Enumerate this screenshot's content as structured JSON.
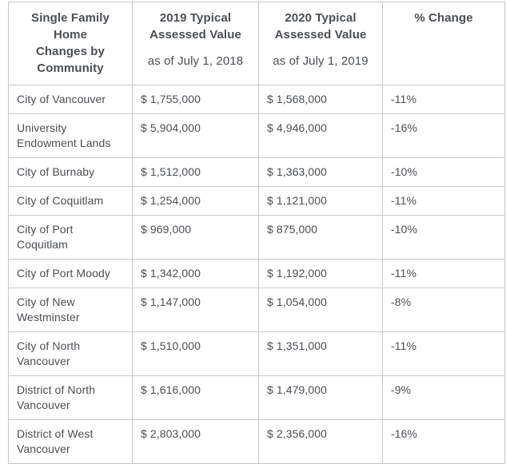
{
  "colors": {
    "text": "#4b4f54",
    "border": "#c9c9c9",
    "background": "#ffffff"
  },
  "table": {
    "columns": [
      {
        "lines": [
          "Single Family Home",
          "Changes by",
          "Community"
        ],
        "subtitle": ""
      },
      {
        "lines": [
          "2019 Typical",
          "Assessed Value"
        ],
        "subtitle": "as of July 1, 2018"
      },
      {
        "lines": [
          "2020 Typical",
          "Assessed Value"
        ],
        "subtitle": "as of July 1, 2019"
      },
      {
        "lines": [
          "% Change"
        ],
        "subtitle": ""
      }
    ],
    "rows": [
      {
        "community": "City of Vancouver",
        "value_2019": "$ 1,755,000",
        "value_2020": "$ 1,568,000",
        "pct_change": "-11%"
      },
      {
        "community": "University Endowment Lands",
        "value_2019": "$ 5,904,000",
        "value_2020": "$ 4,946,000",
        "pct_change": "-16%"
      },
      {
        "community": "City of Burnaby",
        "value_2019": "$ 1,512,000",
        "value_2020": "$ 1,363,000",
        "pct_change": "-10%"
      },
      {
        "community": "City of Coquitlam",
        "value_2019": "$ 1,254,000",
        "value_2020": "$ 1,121,000",
        "pct_change": "-11%"
      },
      {
        "community": "City of Port Coquitlam",
        "value_2019": "$ 969,000",
        "value_2020": "$ 875,000",
        "pct_change": "-10%"
      },
      {
        "community": "City of Port Moody",
        "value_2019": "$ 1,342,000",
        "value_2020": "$ 1,192,000",
        "pct_change": "-11%"
      },
      {
        "community": "City of New Westminster",
        "value_2019": "$ 1,147,000",
        "value_2020": "$ 1,054,000",
        "pct_change": "-8%"
      },
      {
        "community": "City of North Vancouver",
        "value_2019": "$ 1,510,000",
        "value_2020": "$ 1,351,000",
        "pct_change": "-11%"
      },
      {
        "community": "District of North Vancouver",
        "value_2019": "$ 1,616,000",
        "value_2020": "$ 1,479,000",
        "pct_change": "-9%"
      },
      {
        "community": "District of West Vancouver",
        "value_2019": "$ 2,803,000",
        "value_2020": "$ 2,356,000",
        "pct_change": "-16%"
      }
    ]
  },
  "chart_data": {
    "type": "table",
    "title": "Single Family Home Changes by Community",
    "columns": [
      "Single Family Home Changes by Community",
      "2019 Typical Assessed Value as of July 1, 2018",
      "2020 Typical Assessed Value as of July 1, 2019",
      "% Change"
    ],
    "rows": [
      [
        "City of Vancouver",
        1755000,
        1568000,
        -11
      ],
      [
        "University Endowment Lands",
        5904000,
        4946000,
        -16
      ],
      [
        "City of Burnaby",
        1512000,
        1363000,
        -10
      ],
      [
        "City of Coquitlam",
        1254000,
        1121000,
        -11
      ],
      [
        "City of Port Coquitlam",
        969000,
        875000,
        -10
      ],
      [
        "City of Port Moody",
        1342000,
        1192000,
        -11
      ],
      [
        "City of New Westminster",
        1147000,
        1054000,
        -8
      ],
      [
        "City of North Vancouver",
        1510000,
        1351000,
        -11
      ],
      [
        "District of North Vancouver",
        1616000,
        1479000,
        -9
      ],
      [
        "District of West Vancouver",
        2803000,
        2356000,
        -16
      ]
    ]
  }
}
